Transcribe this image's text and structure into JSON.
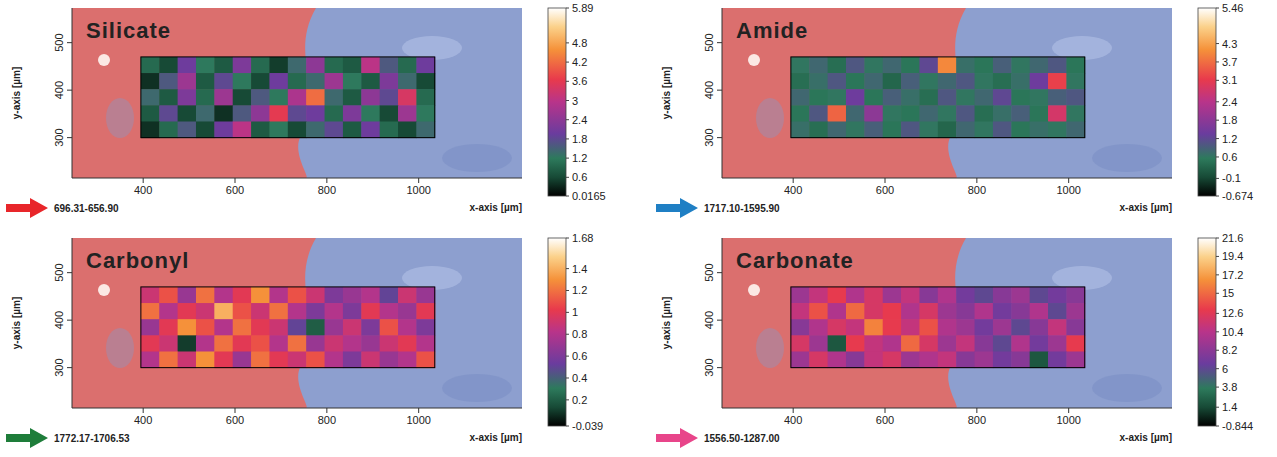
{
  "chart_data": [
    {
      "type": "heatmap",
      "title": "Silicate",
      "subtitle": "696.31-656.90",
      "color": "#e8262a",
      "x_label": "x-axis [µm]",
      "y_label": "y-axis [µm]",
      "xlim": [
        245,
        1225
      ],
      "ylim": [
        215,
        573
      ],
      "xticks": [
        400,
        600,
        800,
        1000
      ],
      "yticks": [
        300,
        400,
        500
      ],
      "cells_xlim": [
        395,
        1035
      ],
      "cells_ylim": [
        300,
        470
      ],
      "cells": [
        [
          1.0,
          0.6,
          2.0,
          1.2,
          0.8,
          2.2,
          1.0,
          0.5,
          1.4,
          2.4,
          1.0,
          0.8,
          3.0,
          1.6,
          1.0,
          2.0
        ],
        [
          0.4,
          1.6,
          2.6,
          0.8,
          1.8,
          1.2,
          0.6,
          2.0,
          1.0,
          1.4,
          2.6,
          1.2,
          0.8,
          2.2,
          1.4,
          0.6
        ],
        [
          1.4,
          0.8,
          2.2,
          1.0,
          2.6,
          0.6,
          1.6,
          1.2,
          2.8,
          4.2,
          1.4,
          0.8,
          2.4,
          1.8,
          3.4,
          1.0
        ],
        [
          0.8,
          1.8,
          0.6,
          1.4,
          0.4,
          1.6,
          2.4,
          3.6,
          1.8,
          2.0,
          1.0,
          2.2,
          1.2,
          0.6,
          2.6,
          1.2
        ],
        [
          0.4,
          1.0,
          1.6,
          0.6,
          2.0,
          3.0,
          0.8,
          1.2,
          0.6,
          1.4,
          1.8,
          0.8,
          2.0,
          1.0,
          0.6,
          1.4
        ]
      ],
      "colorbar_range": [
        0.0165,
        5.89
      ],
      "colorbar_ticks": [
        0.0165,
        0.6,
        1.2,
        1.8,
        2.4,
        3,
        3.6,
        4.2,
        4.8,
        5.89
      ]
    },
    {
      "type": "heatmap",
      "title": "Amide",
      "subtitle": "1717.10-1595.90",
      "color": "#1f7fc4",
      "x_label": "x-axis [µm]",
      "y_label": "y-axis [µm]",
      "xlim": [
        245,
        1225
      ],
      "ylim": [
        215,
        573
      ],
      "xticks": [
        400,
        600,
        800,
        1000
      ],
      "yticks": [
        300,
        400,
        500
      ],
      "cells_xlim": [
        395,
        1035
      ],
      "cells_ylim": [
        300,
        470
      ],
      "cells": [
        [
          0.6,
          0.8,
          0.4,
          1.0,
          0.6,
          0.8,
          0.5,
          1.2,
          4.0,
          0.7,
          0.5,
          0.9,
          0.6,
          0.8,
          1.0,
          0.5
        ],
        [
          0.4,
          0.7,
          1.0,
          0.5,
          0.8,
          0.3,
          0.9,
          0.6,
          0.8,
          1.0,
          0.6,
          0.4,
          0.7,
          1.4,
          3.2,
          0.6
        ],
        [
          0.8,
          0.5,
          0.6,
          1.4,
          0.5,
          0.9,
          0.7,
          0.4,
          1.0,
          0.6,
          0.8,
          1.2,
          0.5,
          0.6,
          0.9,
          1.0
        ],
        [
          0.5,
          1.0,
          3.6,
          0.8,
          1.8,
          0.6,
          0.5,
          0.8,
          0.6,
          1.0,
          0.4,
          0.7,
          0.9,
          0.5,
          2.8,
          0.6
        ],
        [
          0.7,
          0.4,
          0.8,
          0.6,
          0.9,
          0.5,
          1.0,
          0.6,
          0.3,
          0.8,
          0.6,
          1.0,
          0.5,
          0.7,
          0.6,
          0.8
        ]
      ],
      "colorbar_range": [
        -0.674,
        5.46
      ],
      "colorbar_ticks": [
        -0.674,
        -0.1,
        0.6,
        1.2,
        1.8,
        2.4,
        3.1,
        3.7,
        4.3,
        5.46
      ]
    },
    {
      "type": "heatmap",
      "title": "Carbonyl",
      "subtitle": "1772.17-1706.53",
      "color": "#1e7d3a",
      "x_label": "x-axis [µm]",
      "y_label": "y-axis [µm]",
      "xlim": [
        245,
        1225
      ],
      "ylim": [
        215,
        573
      ],
      "xticks": [
        400,
        600,
        800,
        1000
      ],
      "yticks": [
        300,
        400,
        500
      ],
      "cells_xlim": [
        395,
        1035
      ],
      "cells_ylim": [
        300,
        470
      ],
      "cells": [
        [
          0.9,
          1.1,
          0.7,
          1.2,
          0.8,
          1.0,
          1.3,
          0.8,
          1.1,
          0.9,
          0.6,
          0.7,
          0.8,
          0.5,
          0.9,
          0.7
        ],
        [
          1.2,
          0.8,
          1.0,
          0.9,
          1.4,
          1.1,
          0.9,
          1.2,
          0.8,
          0.6,
          0.8,
          0.6,
          1.0,
          0.8,
          0.7,
          1.0
        ],
        [
          0.7,
          1.0,
          1.3,
          1.1,
          0.8,
          1.2,
          1.0,
          0.9,
          0.5,
          0.2,
          0.7,
          0.9,
          0.6,
          1.1,
          0.8,
          0.6
        ],
        [
          1.0,
          0.9,
          0.1,
          0.8,
          1.2,
          1.0,
          1.1,
          0.8,
          1.2,
          0.7,
          0.9,
          0.8,
          0.7,
          0.9,
          1.0,
          0.8
        ],
        [
          0.8,
          1.2,
          0.9,
          1.3,
          1.0,
          0.7,
          1.2,
          1.0,
          0.9,
          1.1,
          0.8,
          0.6,
          0.9,
          0.7,
          0.8,
          1.1
        ]
      ],
      "colorbar_range": [
        -0.039,
        1.68
      ],
      "colorbar_ticks": [
        -0.039,
        0.2,
        0.4,
        0.6,
        0.8,
        1,
        1.2,
        1.4,
        1.68
      ]
    },
    {
      "type": "heatmap",
      "title": "Carbonate",
      "subtitle": "1556.50-1287.00",
      "color": "#e8458a",
      "x_label": "x-axis [µm]",
      "y_label": "y-axis [µm]",
      "xlim": [
        245,
        1225
      ],
      "ylim": [
        215,
        573
      ],
      "xticks": [
        400,
        600,
        800,
        1000
      ],
      "yticks": [
        300,
        400,
        500
      ],
      "cells_xlim": [
        395,
        1035
      ],
      "cells_ylim": [
        300,
        470
      ],
      "cells": [
        [
          9,
          11,
          13,
          10,
          12,
          9,
          11,
          8,
          10,
          7,
          6,
          8,
          9,
          6,
          7,
          8
        ],
        [
          11,
          14,
          10,
          15,
          12,
          13,
          10,
          12,
          9,
          8,
          10,
          7,
          8,
          10,
          6,
          9
        ],
        [
          8,
          10,
          12,
          11,
          16,
          13,
          11,
          14,
          10,
          9,
          7,
          9,
          6,
          8,
          11,
          8
        ],
        [
          12,
          9,
          2,
          13,
          11,
          10,
          15,
          12,
          9,
          11,
          8,
          6,
          10,
          7,
          9,
          13
        ],
        [
          9,
          12,
          10,
          8,
          11,
          12,
          9,
          10,
          11,
          8,
          9,
          7,
          8,
          2,
          7,
          9
        ]
      ],
      "colorbar_range": [
        -0.844,
        21.6
      ],
      "colorbar_ticks": [
        -0.844,
        1.4,
        3.8,
        6,
        8.2,
        10.4,
        12.6,
        15,
        17.2,
        19.4,
        21.6
      ]
    }
  ]
}
